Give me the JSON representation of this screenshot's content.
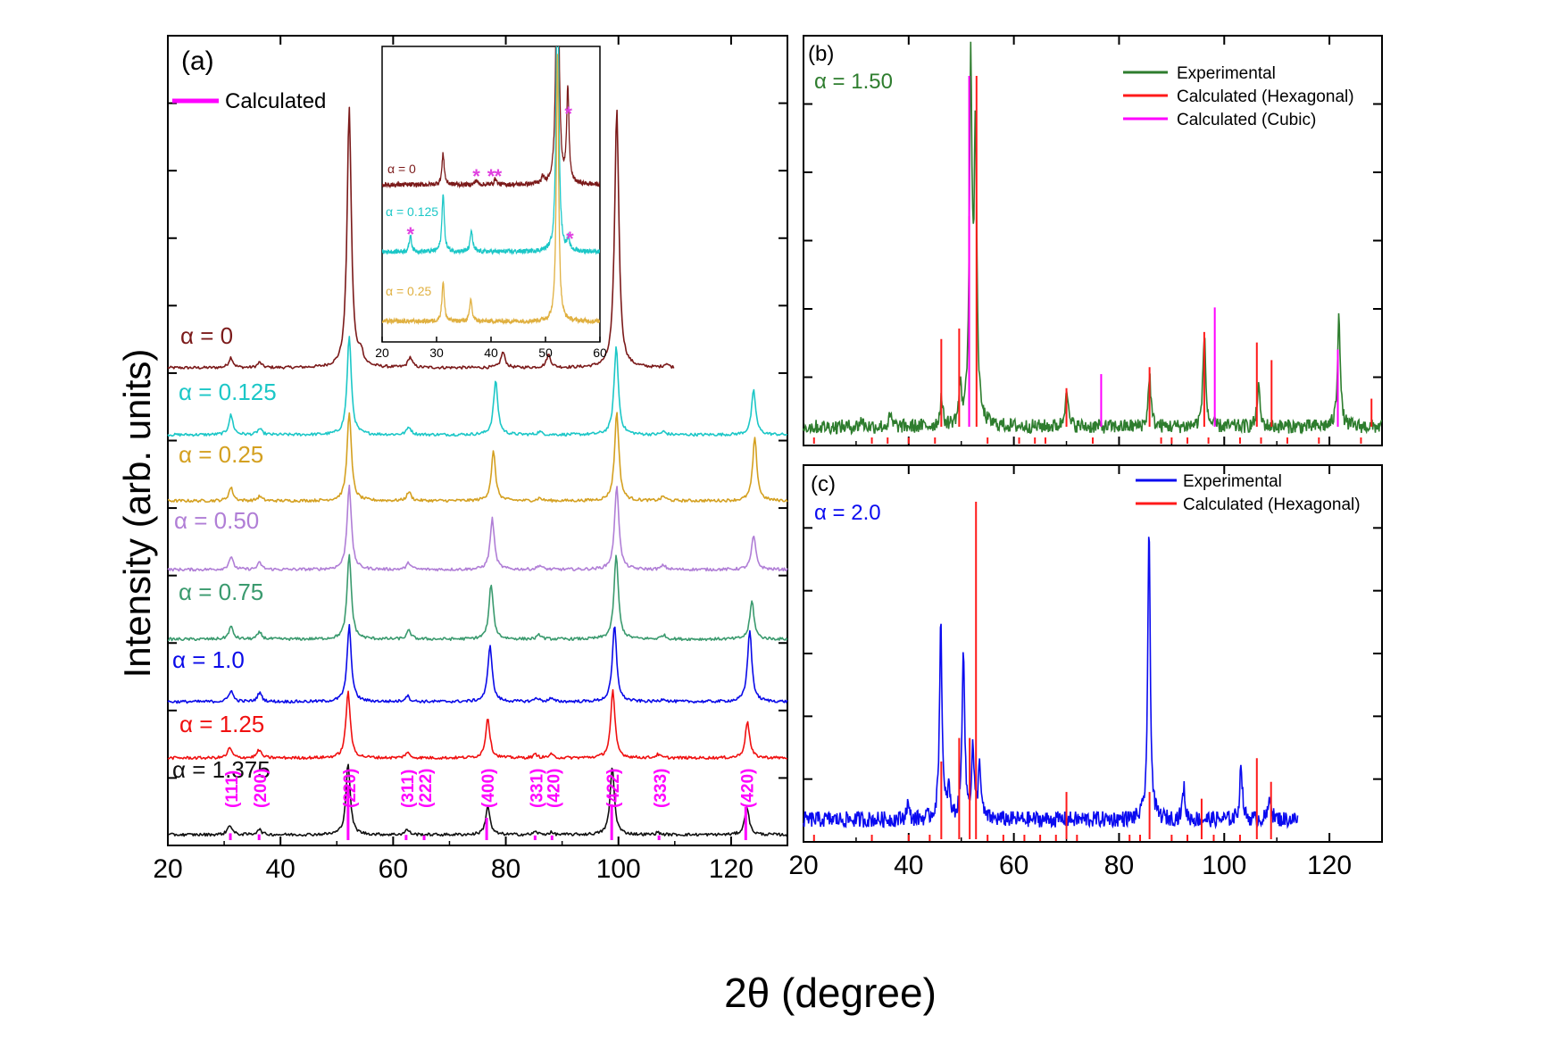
{
  "figure": {
    "xlabel": "2θ (degree)",
    "ylabel": "Intensity (arb. units)"
  },
  "chart_data": [
    {
      "panel": "a",
      "type": "line",
      "label": "(a)",
      "xlim": [
        20,
        130
      ],
      "xticks": [
        "20",
        "40",
        "60",
        "80",
        "100",
        "120"
      ],
      "legend": [
        {
          "name": "Calculated",
          "color": "#ff00ff"
        }
      ],
      "series": [
        {
          "name": "α = 0",
          "color": "#7b1a1a",
          "peaks": [
            [
              31.2,
              0.04
            ],
            [
              36.3,
              0.02
            ],
            [
              52.2,
              1.0
            ],
            [
              54.3,
              0.05
            ],
            [
              63,
              0.04
            ],
            [
              79.5,
              0.06
            ],
            [
              87.6,
              0.05
            ],
            [
              99.7,
              1.0
            ],
            [
              108.5,
              0.015
            ]
          ],
          "xend": 110
        },
        {
          "name": "α = 0.125",
          "color": "#1cc7c7",
          "peaks": [
            [
              31.2,
              0.2
            ],
            [
              36.3,
              0.06
            ],
            [
              52.2,
              1.0
            ],
            [
              62.8,
              0.08
            ],
            [
              78.2,
              0.55
            ],
            [
              86,
              0.03
            ],
            [
              99.6,
              0.9
            ],
            [
              108,
              0.03
            ],
            [
              124,
              0.45
            ]
          ],
          "xend": 130
        },
        {
          "name": "α = 0.25",
          "color": "#d4a020",
          "peaks": [
            [
              31.2,
              0.15
            ],
            [
              36.3,
              0.05
            ],
            [
              52.2,
              1.0
            ],
            [
              62.8,
              0.1
            ],
            [
              77.8,
              0.55
            ],
            [
              86,
              0.03
            ],
            [
              99.7,
              1.0
            ],
            [
              108,
              0.05
            ],
            [
              124.2,
              0.7
            ]
          ],
          "xend": 130
        },
        {
          "name": "α = 0.50",
          "color": "#b07ed6",
          "peaks": [
            [
              31.2,
              0.15
            ],
            [
              36.3,
              0.08
            ],
            [
              52.2,
              1.0
            ],
            [
              62.8,
              0.08
            ],
            [
              77.6,
              0.6
            ],
            [
              86,
              0.05
            ],
            [
              99.7,
              1.0
            ],
            [
              108,
              0.05
            ],
            [
              124,
              0.4
            ]
          ],
          "xend": 130
        },
        {
          "name": "α = 0.75",
          "color": "#3a9a6e",
          "peaks": [
            [
              31.2,
              0.15
            ],
            [
              36.3,
              0.08
            ],
            [
              52.2,
              1.0
            ],
            [
              62.8,
              0.1
            ],
            [
              77.4,
              0.65
            ],
            [
              86,
              0.05
            ],
            [
              99.6,
              1.0
            ],
            [
              108,
              0.05
            ],
            [
              123.7,
              0.45
            ]
          ],
          "xend": 130
        },
        {
          "name": "α = 1.0",
          "color": "#0a0ae8",
          "peaks": [
            [
              31.2,
              0.15
            ],
            [
              36.3,
              0.12
            ],
            [
              52.2,
              1.0
            ],
            [
              62.5,
              0.08
            ],
            [
              77.2,
              0.75
            ],
            [
              85.5,
              0.05
            ],
            [
              88,
              0.04
            ],
            [
              99.3,
              1.0
            ],
            [
              108,
              0.04
            ],
            [
              123.3,
              0.95
            ]
          ],
          "xend": 130
        },
        {
          "name": "α = 1.25",
          "color": "#f01010",
          "peaks": [
            [
              31,
              0.15
            ],
            [
              36.2,
              0.12
            ],
            [
              52,
              1.0
            ],
            [
              62.5,
              0.08
            ],
            [
              76.8,
              0.6
            ],
            [
              85.3,
              0.05
            ],
            [
              88,
              0.05
            ],
            [
              99,
              1.0
            ],
            [
              107,
              0.05
            ],
            [
              122.9,
              0.55
            ]
          ],
          "xend": 130
        },
        {
          "name": "α = 1.375",
          "color": "#111111",
          "peaks": [
            [
              31,
              0.14
            ],
            [
              36.2,
              0.08
            ],
            [
              52,
              1.0
            ],
            [
              62.5,
              0.07
            ],
            [
              76.8,
              0.4
            ],
            [
              85.3,
              0.04
            ],
            [
              88,
              0.03
            ],
            [
              98.9,
              0.95
            ],
            [
              107,
              0.03
            ],
            [
              122.8,
              0.4
            ]
          ],
          "xend": 130
        }
      ],
      "calculated_hkl": [
        {
          "hkl": "(111)",
          "x": 31.1,
          "h": 0.06
        },
        {
          "hkl": "(200)",
          "x": 36.2,
          "h": 0.04
        },
        {
          "hkl": "(220)",
          "x": 52.0,
          "h": 0.95
        },
        {
          "hkl": "(311)",
          "x": 62.3,
          "h": 0.03
        },
        {
          "hkl": "(222)",
          "x": 65.5,
          "h": 0.02
        },
        {
          "hkl": "(400)",
          "x": 76.6,
          "h": 0.35
        },
        {
          "hkl": "(331)",
          "x": 85.2,
          "h": 0.02
        },
        {
          "hkl": "(420)",
          "x": 88.2,
          "h": 0.02
        },
        {
          "hkl": "(422)",
          "x": 98.8,
          "h": 0.6
        },
        {
          "hkl": "(333)",
          "x": 107.2,
          "h": 0.02
        },
        {
          "hkl": "(420)",
          "x": 122.6,
          "h": 0.55
        }
      ],
      "inset": {
        "xlim": [
          20,
          60
        ],
        "xticks": [
          "20",
          "30",
          "40",
          "50",
          "60"
        ],
        "series": [
          {
            "name": "α = 0",
            "color": "#7b1a1a",
            "peaks": [
              [
                31.2,
                0.25
              ],
              [
                37.3,
                0.04
              ],
              [
                40.8,
                0.05
              ],
              [
                49.5,
                0.05
              ],
              [
                52.2,
                3.0
              ],
              [
                54.1,
                0.75
              ]
            ],
            "stars": [
              37.3,
              40,
              41.3,
              54.2
            ]
          },
          {
            "name": "α = 0.125",
            "color": "#1cc7c7",
            "peaks": [
              [
                25.2,
                0.15
              ],
              [
                31.2,
                0.55
              ],
              [
                36.4,
                0.2
              ],
              [
                52.2,
                3.0
              ],
              [
                54.2,
                0.1
              ]
            ],
            "stars": [
              25.2,
              54.5
            ]
          },
          {
            "name": "α = 0.25",
            "color": "#e0b040",
            "peaks": [
              [
                31.2,
                0.45
              ],
              [
                36.3,
                0.25
              ],
              [
                52.2,
                3.0
              ]
            ],
            "stars": []
          }
        ]
      }
    },
    {
      "panel": "b",
      "type": "line",
      "label": "(b)",
      "annotation": "α = 1.50",
      "xlim": [
        20,
        130
      ],
      "xticks": [
        "20",
        "40",
        "60",
        "80",
        "100",
        "120"
      ],
      "legend": [
        {
          "name": "Experimental",
          "color": "#2e7d2e"
        },
        {
          "name": "Calculated (Hexagonal)",
          "color": "#ff1a1a"
        },
        {
          "name": "Calculated (Cubic)",
          "color": "#ff00ff"
        }
      ],
      "experimental_peaks": [
        [
          31,
          0.02
        ],
        [
          36.5,
          0.03
        ],
        [
          46.2,
          0.08
        ],
        [
          49.8,
          0.1
        ],
        [
          51.8,
          1.0
        ],
        [
          52.7,
          0.82
        ],
        [
          70,
          0.12
        ],
        [
          85.8,
          0.15
        ],
        [
          96.2,
          0.27
        ],
        [
          106.5,
          0.12
        ],
        [
          121.8,
          0.33
        ]
      ],
      "hexagonal_sticks": [
        [
          46.2,
          0.25
        ],
        [
          49.6,
          0.28
        ],
        [
          51.5,
          0.6
        ],
        [
          52.9,
          1.0
        ],
        [
          70,
          0.11
        ],
        [
          85.8,
          0.17
        ],
        [
          96.2,
          0.27
        ],
        [
          106.2,
          0.24
        ],
        [
          109,
          0.19
        ],
        [
          121.6,
          0.21
        ],
        [
          128,
          0.08
        ]
      ],
      "cubic_sticks": [
        [
          51.5,
          1.0
        ],
        [
          76.6,
          0.15
        ],
        [
          98.2,
          0.34
        ],
        [
          121.6,
          0.22
        ]
      ],
      "extra_ticks": [
        22,
        33,
        36,
        40,
        45,
        55,
        61,
        64,
        66,
        75,
        88,
        90,
        93,
        97,
        103,
        107,
        112,
        118,
        126
      ]
    },
    {
      "panel": "c",
      "type": "line",
      "label": "(c)",
      "annotation": "α = 2.0",
      "xlim": [
        20,
        130
      ],
      "xticks": [
        "20",
        "40",
        "60",
        "80",
        "100",
        "120"
      ],
      "legend": [
        {
          "name": "Experimental",
          "color": "#0a0af0"
        },
        {
          "name": "Calculated (Hexagonal)",
          "color": "#ff1a1a"
        }
      ],
      "experimental_peaks": [
        [
          39.8,
          0.05
        ],
        [
          46.1,
          0.63
        ],
        [
          47.6,
          0.09
        ],
        [
          50.4,
          0.55
        ],
        [
          52.2,
          0.22
        ],
        [
          53.5,
          0.18
        ],
        [
          85.7,
          0.92
        ],
        [
          92.3,
          0.1
        ],
        [
          103.2,
          0.18
        ],
        [
          108.7,
          0.08
        ]
      ],
      "xend": 114,
      "hexagonal_sticks": [
        [
          46.2,
          0.23
        ],
        [
          49.6,
          0.3
        ],
        [
          51.6,
          0.3
        ],
        [
          52.8,
          1.0
        ],
        [
          70,
          0.14
        ],
        [
          85.8,
          0.14
        ],
        [
          95.7,
          0.12
        ],
        [
          106.2,
          0.24
        ],
        [
          108.9,
          0.17
        ]
      ],
      "extra_ticks": [
        22,
        33,
        40,
        44,
        55,
        58,
        62,
        65,
        68,
        72,
        82,
        84,
        90,
        93,
        98,
        103
      ]
    }
  ]
}
